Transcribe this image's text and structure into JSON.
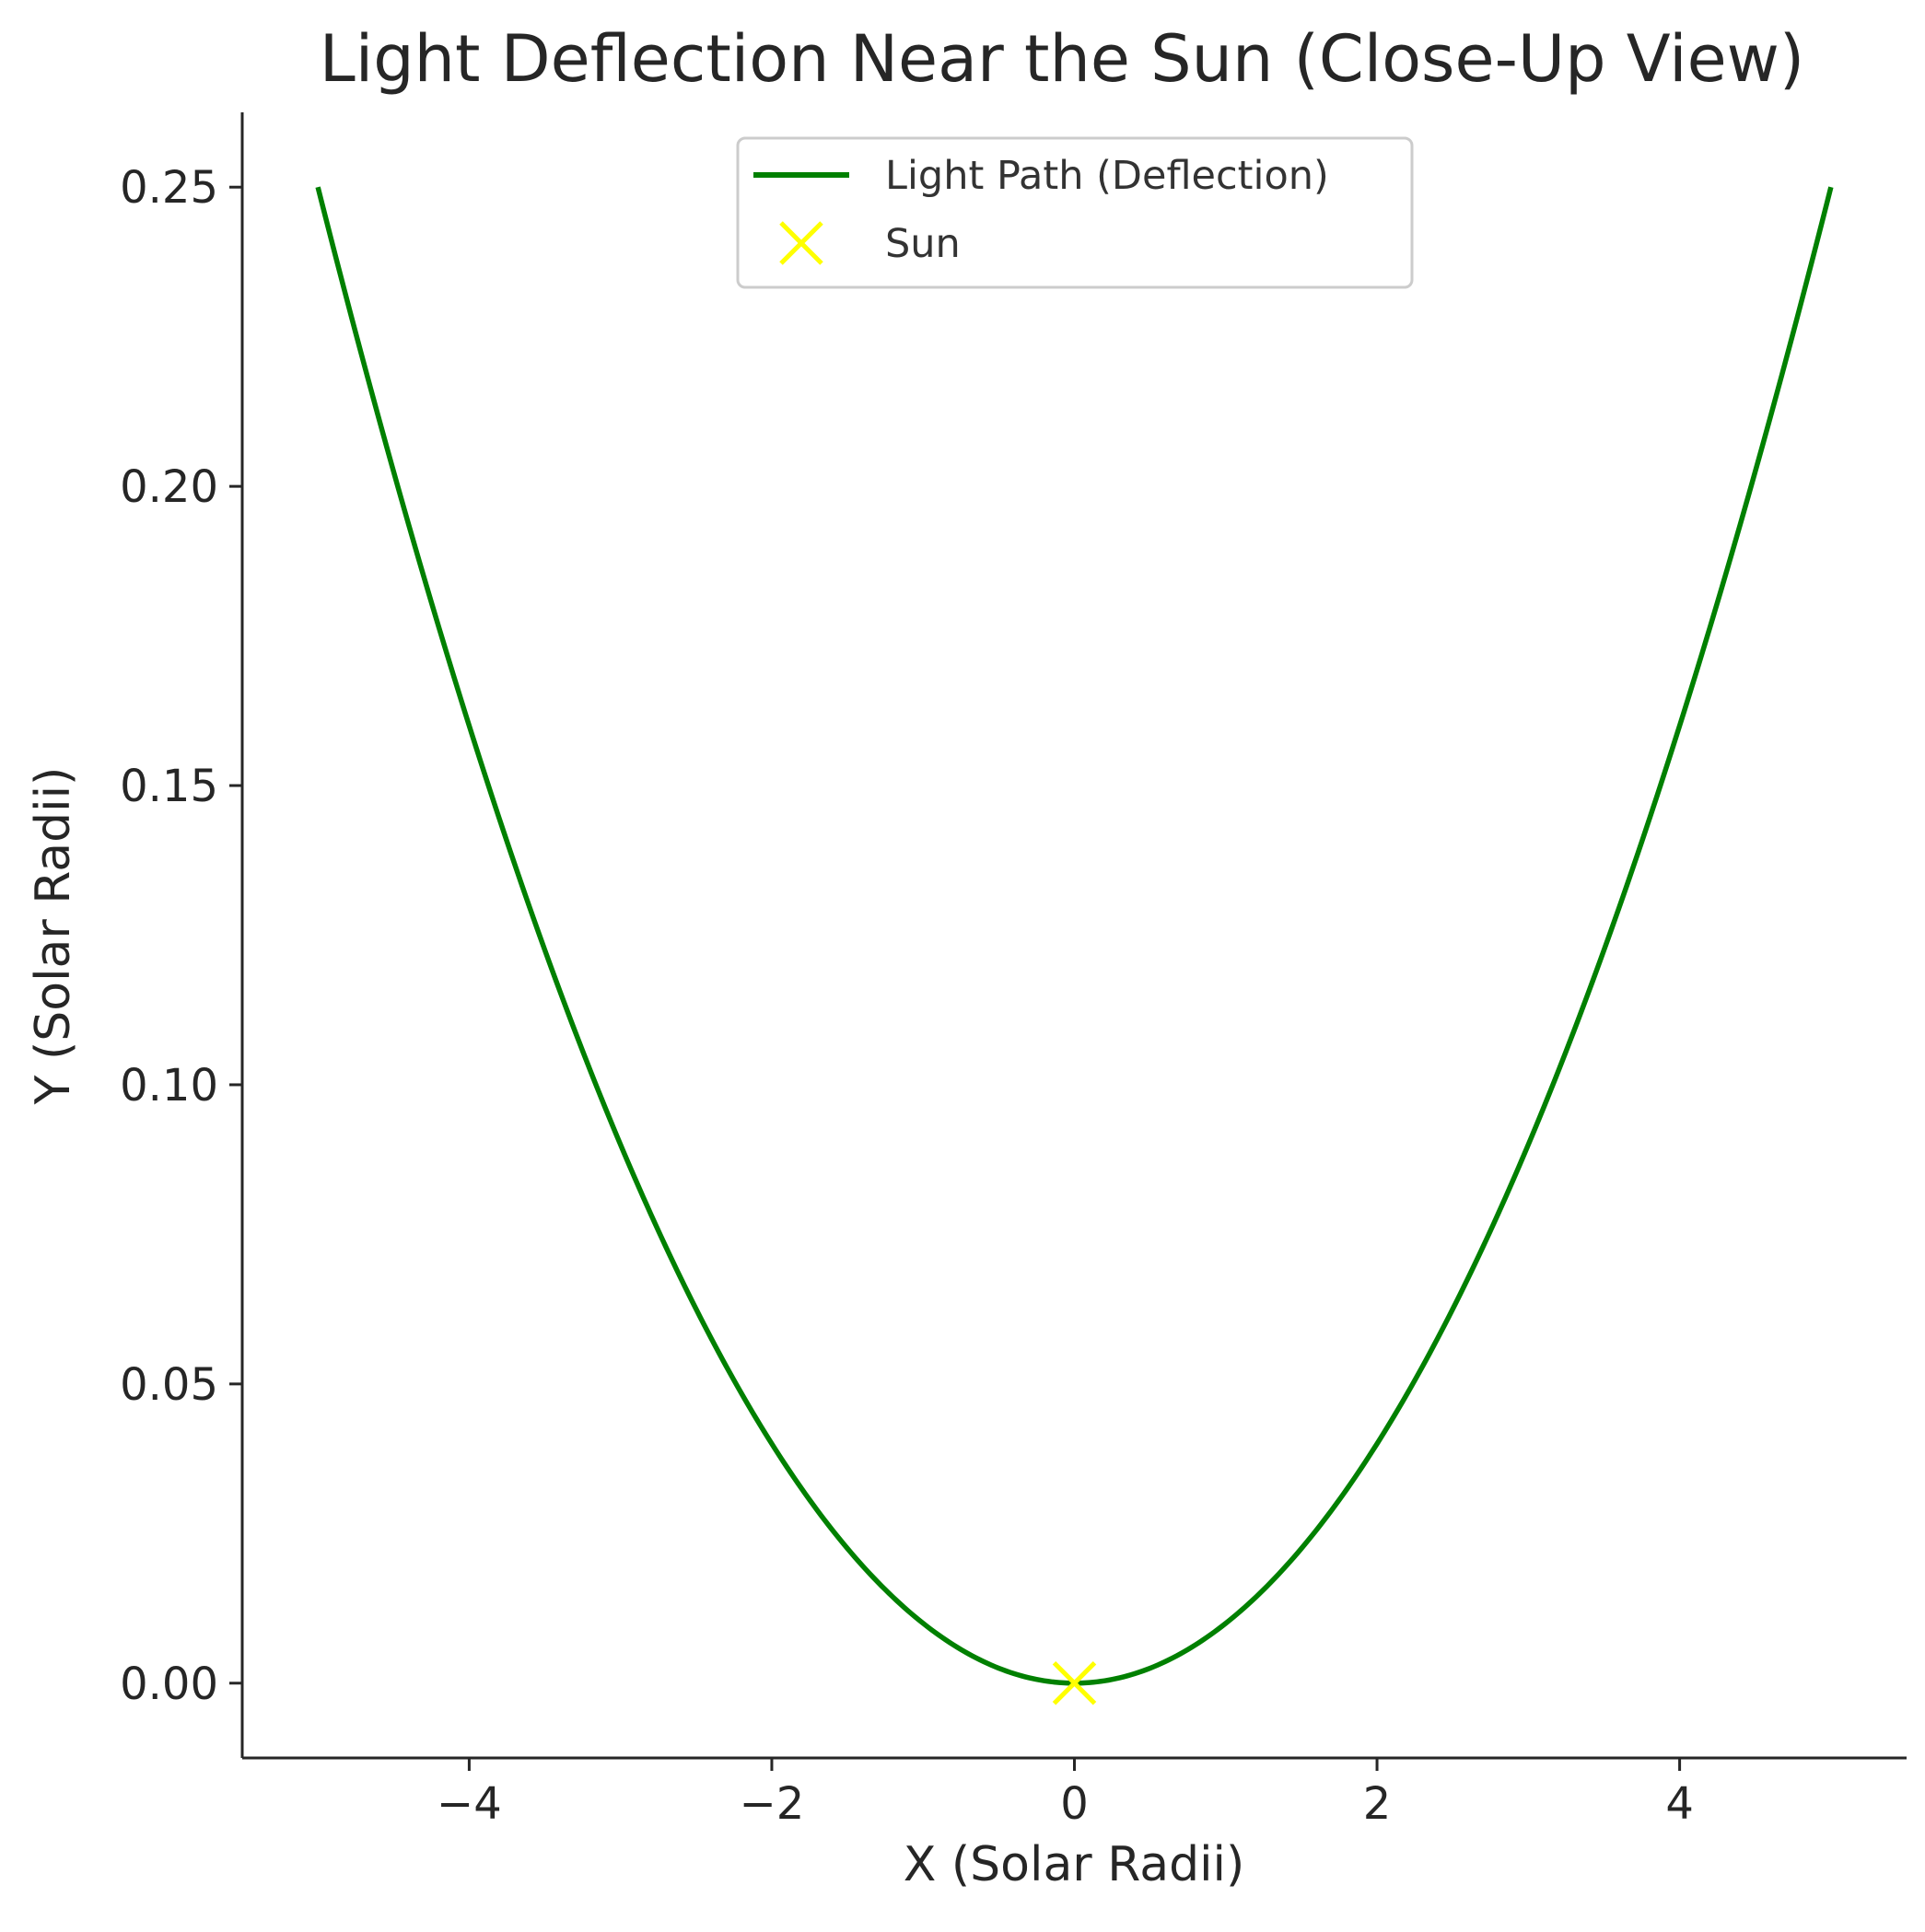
{
  "chart_data": {
    "type": "line",
    "title": "Light Deflection Near the Sun (Close-Up View)",
    "xlabel": "X (Solar Radii)",
    "ylabel": "Y (Solar Radii)",
    "xlim": [
      -5.5,
      5.5
    ],
    "ylim": [
      -0.0125,
      0.2625
    ],
    "xticks": [
      -4,
      -2,
      0,
      2,
      4
    ],
    "xtick_labels": [
      "−4",
      "−2",
      "0",
      "2",
      "4"
    ],
    "yticks": [
      0.0,
      0.05,
      0.1,
      0.15,
      0.2,
      0.25
    ],
    "ytick_labels": [
      "0.00",
      "0.05",
      "0.10",
      "0.15",
      "0.20",
      "0.25"
    ],
    "grid": false,
    "legend_position": "top-center",
    "series": [
      {
        "name": "Light Path (Deflection)",
        "kind": "line",
        "color": "#008000",
        "x": [
          -5.0,
          -4.5,
          -4.0,
          -3.5,
          -3.0,
          -2.5,
          -2.0,
          -1.5,
          -1.0,
          -0.5,
          0.0,
          0.5,
          1.0,
          1.5,
          2.0,
          2.5,
          3.0,
          3.5,
          4.0,
          4.5,
          5.0
        ],
        "y": [
          0.25,
          0.2025,
          0.16,
          0.1225,
          0.09,
          0.0625,
          0.04,
          0.0225,
          0.01,
          0.0025,
          0.0,
          0.0025,
          0.01,
          0.0225,
          0.04,
          0.0625,
          0.09,
          0.1225,
          0.16,
          0.2025,
          0.25
        ]
      },
      {
        "name": "Sun",
        "kind": "marker",
        "marker": "x",
        "color": "#ffff00",
        "x": [
          0.0
        ],
        "y": [
          0.0
        ]
      }
    ]
  }
}
